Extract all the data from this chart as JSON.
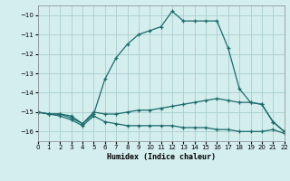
{
  "xlabel": "Humidex (Indice chaleur)",
  "background_color": "#d4eded",
  "grid_color": "#aacfcf",
  "line_color": "#1a6b6b",
  "xlim": [
    0,
    22
  ],
  "ylim": [
    -16.5,
    -9.5
  ],
  "yticks": [
    -16,
    -15,
    -14,
    -13,
    -12,
    -11,
    -10
  ],
  "xticks": [
    0,
    1,
    2,
    3,
    4,
    5,
    6,
    7,
    8,
    9,
    10,
    11,
    12,
    13,
    14,
    15,
    16,
    17,
    18,
    19,
    20,
    21,
    22
  ],
  "line1_x": [
    0,
    1,
    2,
    3,
    4,
    5,
    6,
    7,
    8,
    9,
    10,
    11,
    12,
    13,
    14,
    15,
    16,
    17,
    18,
    19,
    20,
    21,
    22
  ],
  "line1_y": [
    -15.0,
    -15.1,
    -15.1,
    -15.3,
    -15.6,
    -15.1,
    -13.3,
    -12.2,
    -11.5,
    -11.0,
    -10.8,
    -10.6,
    -9.8,
    -10.3,
    -10.3,
    -10.3,
    -10.3,
    -11.7,
    -13.8,
    -14.5,
    -14.6,
    -15.5,
    -16.0
  ],
  "line2_x": [
    0,
    1,
    2,
    3,
    4,
    5,
    6,
    7,
    8,
    9,
    10,
    11,
    12,
    13,
    14,
    15,
    16,
    17,
    18,
    19,
    20,
    21,
    22
  ],
  "line2_y": [
    -15.0,
    -15.1,
    -15.1,
    -15.2,
    -15.6,
    -15.0,
    -15.1,
    -15.1,
    -15.0,
    -14.9,
    -14.9,
    -14.8,
    -14.7,
    -14.6,
    -14.5,
    -14.4,
    -14.3,
    -14.4,
    -14.5,
    -14.5,
    -14.6,
    -15.5,
    -16.0
  ],
  "line3_x": [
    0,
    1,
    2,
    3,
    4,
    5,
    6,
    7,
    8,
    9,
    10,
    11,
    12,
    13,
    14,
    15,
    16,
    17,
    18,
    19,
    20,
    21,
    22
  ],
  "line3_y": [
    -15.0,
    -15.1,
    -15.2,
    -15.4,
    -15.7,
    -15.2,
    -15.5,
    -15.6,
    -15.7,
    -15.7,
    -15.7,
    -15.7,
    -15.7,
    -15.8,
    -15.8,
    -15.8,
    -15.9,
    -15.9,
    -16.0,
    -16.0,
    -16.0,
    -15.9,
    -16.1
  ]
}
